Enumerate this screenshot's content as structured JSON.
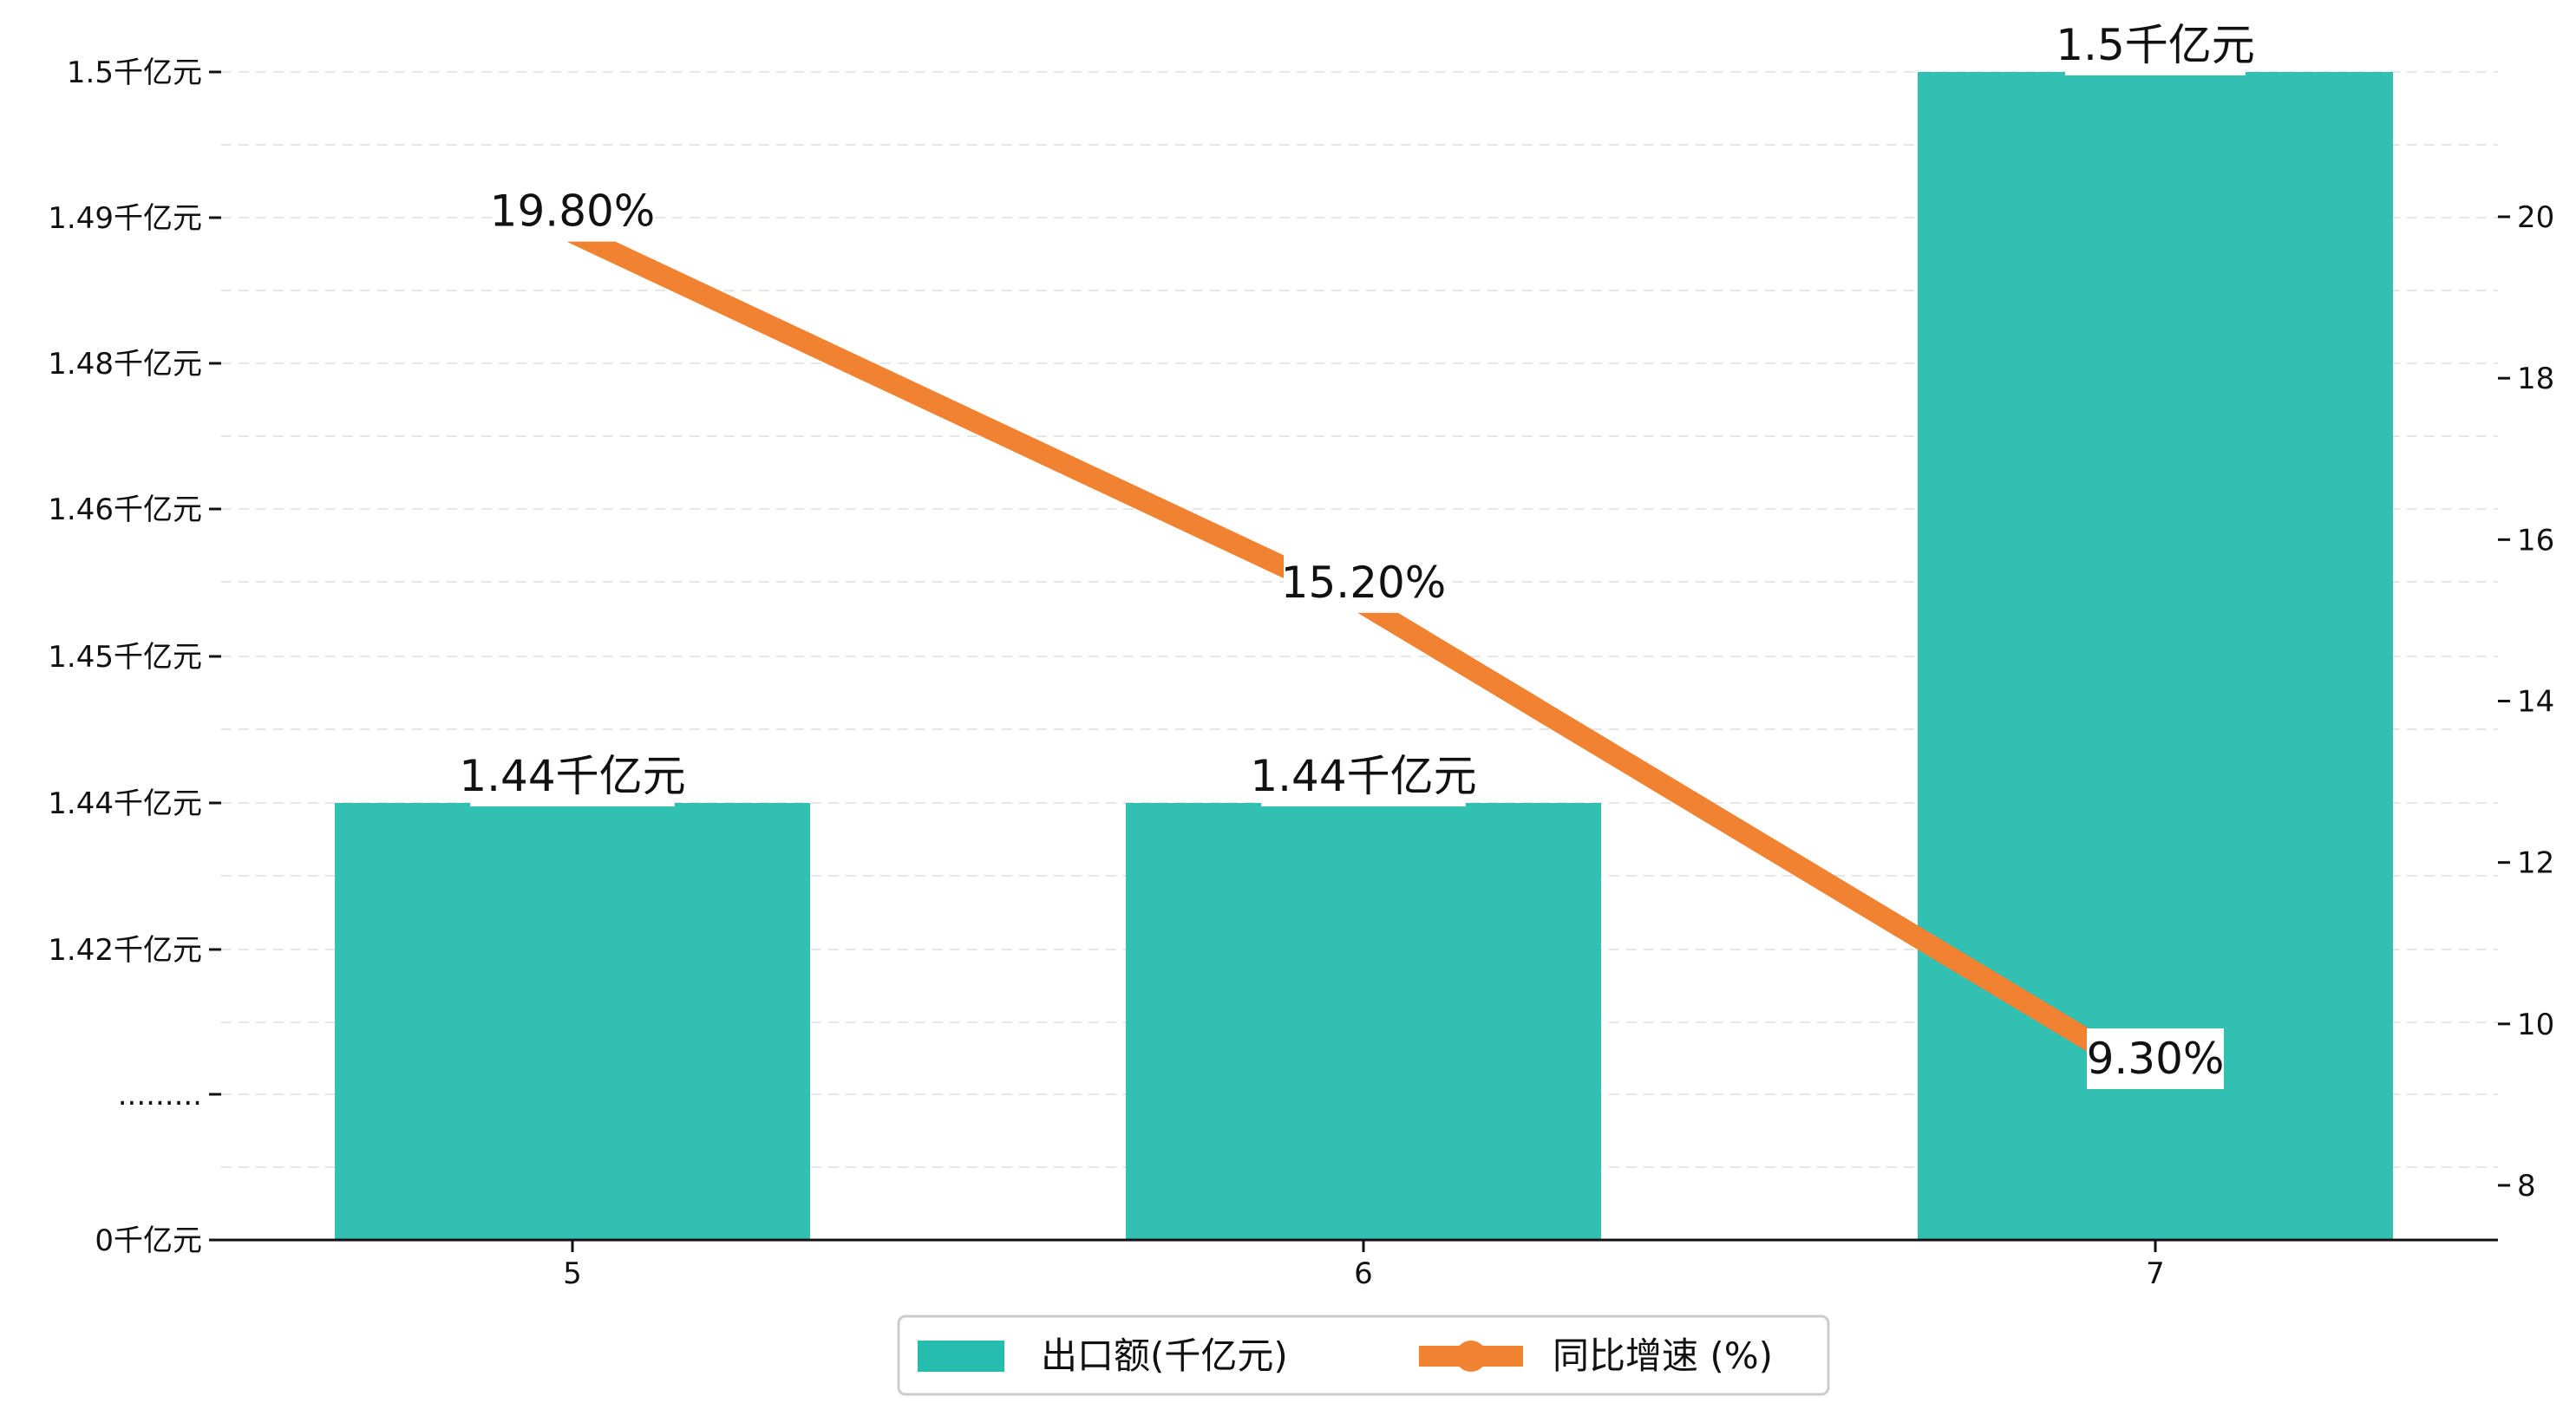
{
  "chart_data": {
    "type": "bar+line",
    "categories": [
      "5",
      "6",
      "7"
    ],
    "series": [
      {
        "name": "出口额(千亿元)",
        "type": "bar",
        "axis": "left",
        "values": [
          1.44,
          1.44,
          1.5
        ],
        "labels": [
          "1.44千亿元",
          "1.44千亿元",
          "1.5千亿元"
        ],
        "color": "#26BDAE"
      },
      {
        "name": "同比增速 (%)",
        "type": "line",
        "axis": "right",
        "values": [
          19.8,
          15.2,
          9.3
        ],
        "labels": [
          "19.80%",
          "15.20%",
          "9.30%"
        ],
        "color": "#F08231"
      }
    ],
    "left_axis": {
      "note": "broken axis",
      "ticks": [
        {
          "value": 1.5,
          "label": "1.5千亿元"
        },
        {
          "value": 1.49,
          "label": "1.49千亿元"
        },
        {
          "value": 1.48,
          "label": "1.48千亿元"
        },
        {
          "value": 1.46,
          "label": "1.46千亿元"
        },
        {
          "value": 1.45,
          "label": "1.45千亿元"
        },
        {
          "value": 1.44,
          "label": "1.44千亿元"
        },
        {
          "value": 1.42,
          "label": "1.42千亿元"
        },
        {
          "value": null,
          "label": "........."
        },
        {
          "value": 0,
          "label": "0千亿元"
        }
      ]
    },
    "right_axis": {
      "ylim": [
        7.3,
        21.8
      ],
      "ticks": [
        8,
        10,
        12,
        14,
        16,
        18,
        20
      ]
    },
    "grid": "horizontal dashed",
    "legend": "bottom-center"
  }
}
